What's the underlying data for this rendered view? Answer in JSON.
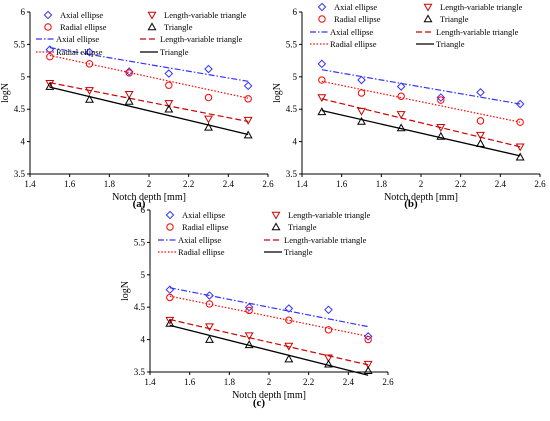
{
  "chart_data": [
    {
      "type": "scatter",
      "panel_label": "(a)",
      "xlabel": "Notch depth [mm]",
      "ylabel": "logN",
      "xlim": [
        1.4,
        2.6
      ],
      "ylim": [
        3.5,
        6
      ],
      "xticks": [
        "1.4",
        "1.6",
        "1.8",
        "2",
        "2.2",
        "2.4",
        "2.6"
      ],
      "yticks": [
        "3.5",
        "4",
        "4.5",
        "5",
        "5.5",
        "6"
      ],
      "grid": false,
      "legend": "top",
      "series": [
        {
          "name": "Axial ellipse",
          "marker": "diamond",
          "color": "#3333ff",
          "x": [
            1.5,
            1.7,
            1.9,
            2.1,
            2.3,
            2.5
          ],
          "y": [
            5.42,
            5.38,
            5.08,
            5.05,
            5.12,
            4.86
          ]
        },
        {
          "name": "Radial ellipse",
          "marker": "circle",
          "color": "#ff0000",
          "x": [
            1.5,
            1.7,
            1.9,
            2.1,
            2.3,
            2.5
          ],
          "y": [
            5.31,
            5.2,
            5.06,
            4.87,
            4.68,
            4.66
          ]
        },
        {
          "name": "Length-variable triangle",
          "marker": "triangle-down",
          "color": "#cc0000",
          "x": [
            1.5,
            1.7,
            1.9,
            2.1,
            2.3,
            2.5
          ],
          "y": [
            4.9,
            4.79,
            4.73,
            4.59,
            4.35,
            4.33
          ]
        },
        {
          "name": "Triangle",
          "marker": "triangle-up",
          "color": "#000000",
          "x": [
            1.5,
            1.7,
            1.9,
            2.1,
            2.3,
            2.5
          ],
          "y": [
            4.85,
            4.65,
            4.62,
            4.5,
            4.22,
            4.1
          ]
        }
      ],
      "trendlines": [
        {
          "name": "Axial ellipse",
          "style": "dashdot",
          "color": "#3333ff",
          "x": [
            1.5,
            2.5
          ],
          "y": [
            5.45,
            4.93
          ]
        },
        {
          "name": "Length-variable triangle",
          "style": "dashed",
          "color": "#cc0000",
          "x": [
            1.5,
            2.5
          ],
          "y": [
            4.91,
            4.31
          ]
        },
        {
          "name": "Radial ellipse",
          "style": "dotted",
          "color": "#ff0000",
          "x": [
            1.5,
            2.5
          ],
          "y": [
            5.33,
            4.67
          ]
        },
        {
          "name": "Triangle",
          "style": "solid",
          "color": "#000000",
          "x": [
            1.5,
            2.5
          ],
          "y": [
            4.84,
            4.11
          ]
        }
      ]
    },
    {
      "type": "scatter",
      "panel_label": "(b)",
      "xlabel": "Notch depth [mm]",
      "ylabel": "logN",
      "xlim": [
        1.4,
        2.6
      ],
      "ylim": [
        3.5,
        6
      ],
      "xticks": [
        "1.4",
        "1.6",
        "1.8",
        "2",
        "2.2",
        "2.4",
        "2.6"
      ],
      "yticks": [
        "3.5",
        "4",
        "4.5",
        "5",
        "5.5",
        "6"
      ],
      "grid": false,
      "legend": "top",
      "series": [
        {
          "name": "Axial ellipse",
          "marker": "diamond",
          "color": "#3333ff",
          "x": [
            1.5,
            1.7,
            1.9,
            2.1,
            2.3,
            2.5
          ],
          "y": [
            5.2,
            4.95,
            4.85,
            4.68,
            4.76,
            4.58
          ]
        },
        {
          "name": "Radial ellipse",
          "marker": "circle",
          "color": "#ff0000",
          "x": [
            1.5,
            1.7,
            1.9,
            2.1,
            2.3,
            2.5
          ],
          "y": [
            4.95,
            4.75,
            4.7,
            4.64,
            4.32,
            4.3
          ]
        },
        {
          "name": "Length-variable triangle",
          "marker": "triangle-down",
          "color": "#cc0000",
          "x": [
            1.5,
            1.7,
            1.9,
            2.1,
            2.3,
            2.5
          ],
          "y": [
            4.68,
            4.47,
            4.42,
            4.22,
            4.1,
            3.92
          ]
        },
        {
          "name": "Triangle",
          "marker": "triangle-up",
          "color": "#000000",
          "x": [
            1.5,
            1.7,
            1.9,
            2.1,
            2.3,
            2.5
          ],
          "y": [
            4.46,
            4.31,
            4.21,
            4.08,
            3.97,
            3.76
          ]
        }
      ],
      "trendlines": [
        {
          "name": "Axial ellipse",
          "style": "dashdot",
          "color": "#3333ff",
          "x": [
            1.5,
            2.5
          ],
          "y": [
            5.11,
            4.58
          ]
        },
        {
          "name": "Length-variable triangle",
          "style": "dashed",
          "color": "#cc0000",
          "x": [
            1.5,
            2.5
          ],
          "y": [
            4.66,
            3.92
          ]
        },
        {
          "name": "Radial ellipse",
          "style": "dotted",
          "color": "#ff0000",
          "x": [
            1.5,
            2.5
          ],
          "y": [
            4.93,
            4.3
          ]
        },
        {
          "name": "Triangle",
          "style": "solid",
          "color": "#000000",
          "x": [
            1.5,
            2.5
          ],
          "y": [
            4.48,
            3.78
          ]
        }
      ]
    },
    {
      "type": "scatter",
      "panel_label": "(c)",
      "xlabel": "Notch depth [mm]",
      "ylabel": "logN",
      "xlim": [
        1.4,
        2.6
      ],
      "ylim": [
        3.5,
        6
      ],
      "xticks": [
        "1.4",
        "1.6",
        "1.8",
        "2",
        "2.2",
        "2.4",
        "2.6"
      ],
      "yticks": [
        "3.5",
        "4",
        "4.5",
        "5",
        "5.5",
        "6"
      ],
      "grid": false,
      "legend": "top",
      "series": [
        {
          "name": "Axial ellipse",
          "marker": "diamond",
          "color": "#3333ff",
          "x": [
            1.5,
            1.7,
            1.9,
            2.1,
            2.3,
            2.5
          ],
          "y": [
            4.77,
            4.68,
            4.5,
            4.48,
            4.46,
            4.05
          ]
        },
        {
          "name": "Radial ellipse",
          "marker": "circle",
          "color": "#ff0000",
          "x": [
            1.5,
            1.7,
            1.9,
            2.1,
            2.3,
            2.5
          ],
          "y": [
            4.65,
            4.55,
            4.45,
            4.3,
            4.15,
            4.0
          ]
        },
        {
          "name": "Length-variable triangle",
          "marker": "triangle-down",
          "color": "#cc0000",
          "x": [
            1.5,
            1.7,
            1.9,
            2.1,
            2.3,
            2.5
          ],
          "y": [
            4.3,
            4.2,
            4.06,
            3.9,
            3.72,
            3.62
          ]
        },
        {
          "name": "Triangle",
          "marker": "triangle-up",
          "color": "#000000",
          "x": [
            1.5,
            1.7,
            1.9,
            2.1,
            2.3,
            2.5
          ],
          "y": [
            4.25,
            4.0,
            3.92,
            3.7,
            3.62,
            3.52
          ]
        }
      ],
      "trendlines": [
        {
          "name": "Axial ellipse",
          "style": "dashdot",
          "color": "#3333ff",
          "x": [
            1.5,
            2.5
          ],
          "y": [
            4.8,
            4.2
          ]
        },
        {
          "name": "Length-variable triangle",
          "style": "dashed",
          "color": "#cc0000",
          "x": [
            1.5,
            2.5
          ],
          "y": [
            4.31,
            3.61
          ]
        },
        {
          "name": "Radial ellipse",
          "style": "dotted",
          "color": "#ff0000",
          "x": [
            1.5,
            2.5
          ],
          "y": [
            4.67,
            4.05
          ]
        },
        {
          "name": "Triangle",
          "style": "solid",
          "color": "#000000",
          "x": [
            1.5,
            2.5
          ],
          "y": [
            4.22,
            3.45
          ]
        }
      ]
    }
  ]
}
